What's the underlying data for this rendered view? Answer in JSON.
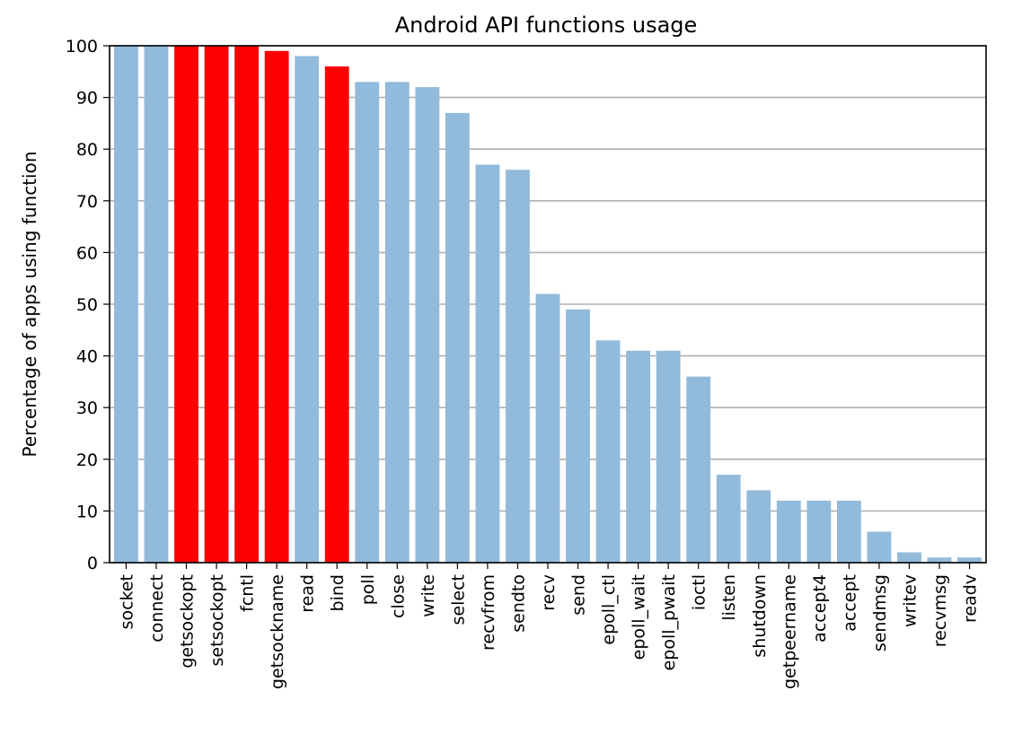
{
  "chart_data": {
    "type": "bar",
    "title": "Android API functions usage",
    "xlabel": "",
    "ylabel": "Percentage of apps using function",
    "ylim": [
      0,
      100
    ],
    "yticks": [
      0,
      10,
      20,
      30,
      40,
      50,
      60,
      70,
      80,
      90,
      100
    ],
    "grid": "horizontal",
    "legend": "none",
    "categories": [
      "socket",
      "connect",
      "getsockopt",
      "setsockopt",
      "fcntl",
      "getsockname",
      "read",
      "bind",
      "poll",
      "close",
      "write",
      "select",
      "recvfrom",
      "sendto",
      "recv",
      "send",
      "epoll_ctl",
      "epoll_wait",
      "epoll_pwait",
      "ioctl",
      "listen",
      "shutdown",
      "getpeername",
      "accept4",
      "accept",
      "sendmsg",
      "writev",
      "recvmsg",
      "readv"
    ],
    "values": [
      100,
      100,
      100,
      100,
      100,
      99,
      98,
      96,
      93,
      93,
      92,
      87,
      77,
      76,
      52,
      49,
      43,
      41,
      41,
      36,
      17,
      14,
      12,
      12,
      12,
      6,
      2,
      1,
      1
    ],
    "highlighted": [
      "getsockopt",
      "setsockopt",
      "fcntl",
      "getsockname",
      "bind"
    ],
    "colors": {
      "default_bar": "#92badb",
      "highlight_bar": "#ff0000",
      "grid": "#b0b0b0",
      "axis": "#000000"
    }
  }
}
